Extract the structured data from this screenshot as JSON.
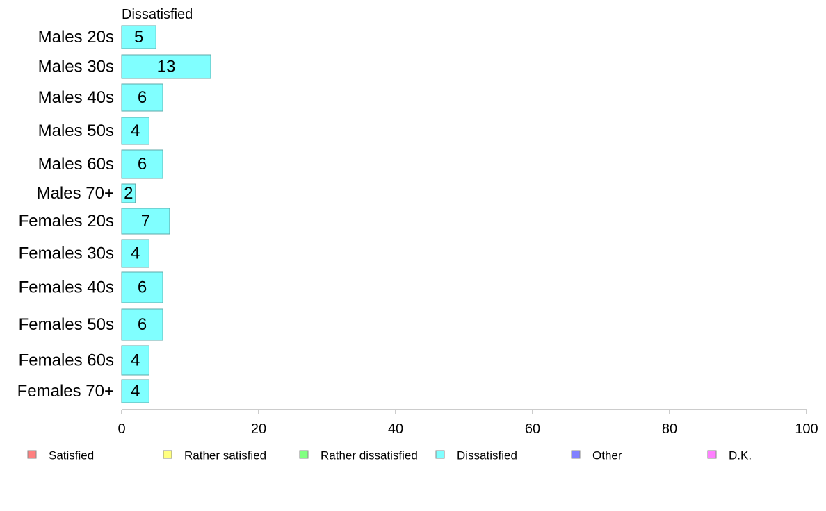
{
  "chart_data": {
    "type": "bar",
    "orientation": "horizontal",
    "title": "Dissatisfied",
    "categories": [
      "Males 20s",
      "Males 30s",
      "Males 40s",
      "Males 50s",
      "Males 60s",
      "Males 70+",
      "Females 20s",
      "Females 30s",
      "Females 40s",
      "Females 50s",
      "Females 60s",
      "Females 70+"
    ],
    "series": [
      {
        "name": "Dissatisfied",
        "values": [
          5,
          13,
          6,
          4,
          6,
          2,
          7,
          4,
          6,
          6,
          4,
          4
        ]
      }
    ],
    "bar_color": "#80ffff",
    "bar_edge_color": "#5fa8a8",
    "xlim": [
      0,
      100
    ],
    "xticks": [
      0,
      20,
      40,
      60,
      80,
      100
    ],
    "grid": false,
    "legend_position": "bottom",
    "legend": [
      {
        "label": "Satisfied",
        "color": "#ff8080"
      },
      {
        "label": "Rather satisfied",
        "color": "#ffff80"
      },
      {
        "label": "Rather dissatisfied",
        "color": "#80ff80"
      },
      {
        "label": "Dissatisfied",
        "color": "#80ffff"
      },
      {
        "label": "Other",
        "color": "#8080ff"
      },
      {
        "label": "D.K.",
        "color": "#ff80ff"
      }
    ]
  }
}
